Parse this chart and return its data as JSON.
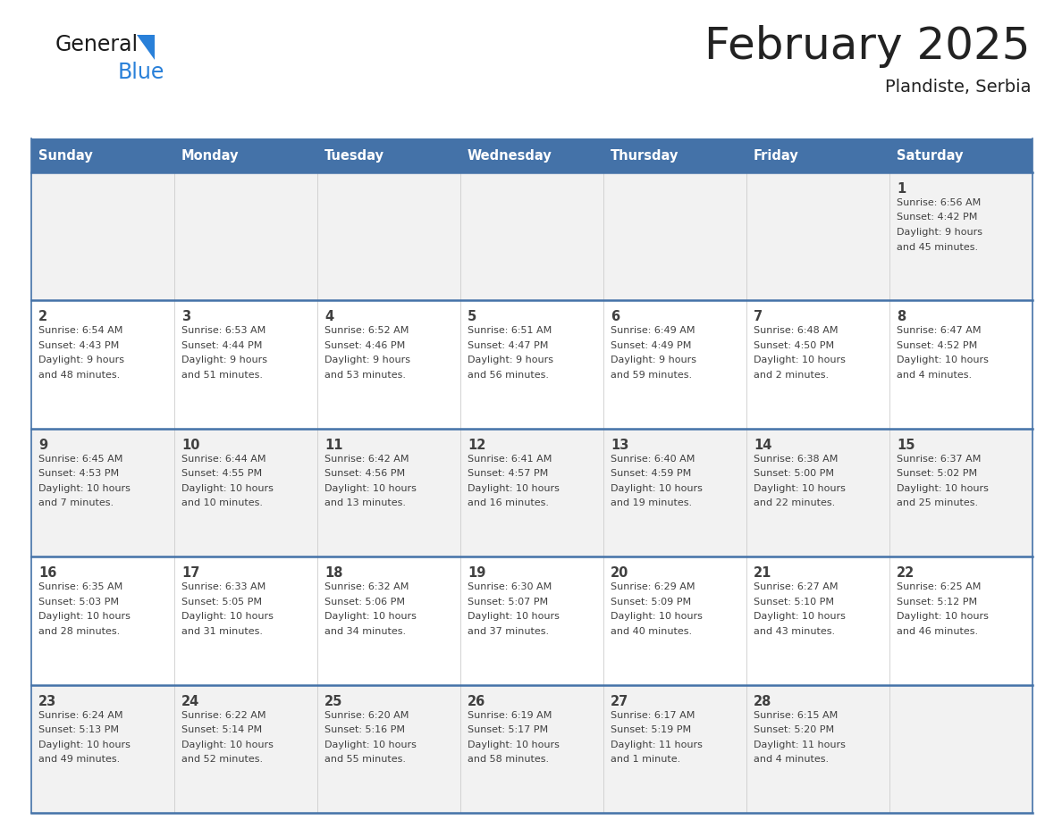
{
  "title": "February 2025",
  "subtitle": "Plandiste, Serbia",
  "days_of_week": [
    "Sunday",
    "Monday",
    "Tuesday",
    "Wednesday",
    "Thursday",
    "Friday",
    "Saturday"
  ],
  "header_bg": "#4472A8",
  "header_text_color": "#FFFFFF",
  "row_bg_colors": [
    "#F2F2F2",
    "#FFFFFF"
  ],
  "border_color": "#4472A8",
  "cell_border_color": "#BBBBBB",
  "text_color": "#404040",
  "title_color": "#222222",
  "calendar_data": [
    [
      null,
      null,
      null,
      null,
      null,
      null,
      {
        "day": 1,
        "sunrise": "6:56 AM",
        "sunset": "4:42 PM",
        "daylight": "9 hours",
        "daylight2": "and 45 minutes."
      }
    ],
    [
      {
        "day": 2,
        "sunrise": "6:54 AM",
        "sunset": "4:43 PM",
        "daylight": "9 hours",
        "daylight2": "and 48 minutes."
      },
      {
        "day": 3,
        "sunrise": "6:53 AM",
        "sunset": "4:44 PM",
        "daylight": "9 hours",
        "daylight2": "and 51 minutes."
      },
      {
        "day": 4,
        "sunrise": "6:52 AM",
        "sunset": "4:46 PM",
        "daylight": "9 hours",
        "daylight2": "and 53 minutes."
      },
      {
        "day": 5,
        "sunrise": "6:51 AM",
        "sunset": "4:47 PM",
        "daylight": "9 hours",
        "daylight2": "and 56 minutes."
      },
      {
        "day": 6,
        "sunrise": "6:49 AM",
        "sunset": "4:49 PM",
        "daylight": "9 hours",
        "daylight2": "and 59 minutes."
      },
      {
        "day": 7,
        "sunrise": "6:48 AM",
        "sunset": "4:50 PM",
        "daylight": "10 hours",
        "daylight2": "and 2 minutes."
      },
      {
        "day": 8,
        "sunrise": "6:47 AM",
        "sunset": "4:52 PM",
        "daylight": "10 hours",
        "daylight2": "and 4 minutes."
      }
    ],
    [
      {
        "day": 9,
        "sunrise": "6:45 AM",
        "sunset": "4:53 PM",
        "daylight": "10 hours",
        "daylight2": "and 7 minutes."
      },
      {
        "day": 10,
        "sunrise": "6:44 AM",
        "sunset": "4:55 PM",
        "daylight": "10 hours",
        "daylight2": "and 10 minutes."
      },
      {
        "day": 11,
        "sunrise": "6:42 AM",
        "sunset": "4:56 PM",
        "daylight": "10 hours",
        "daylight2": "and 13 minutes."
      },
      {
        "day": 12,
        "sunrise": "6:41 AM",
        "sunset": "4:57 PM",
        "daylight": "10 hours",
        "daylight2": "and 16 minutes."
      },
      {
        "day": 13,
        "sunrise": "6:40 AM",
        "sunset": "4:59 PM",
        "daylight": "10 hours",
        "daylight2": "and 19 minutes."
      },
      {
        "day": 14,
        "sunrise": "6:38 AM",
        "sunset": "5:00 PM",
        "daylight": "10 hours",
        "daylight2": "and 22 minutes."
      },
      {
        "day": 15,
        "sunrise": "6:37 AM",
        "sunset": "5:02 PM",
        "daylight": "10 hours",
        "daylight2": "and 25 minutes."
      }
    ],
    [
      {
        "day": 16,
        "sunrise": "6:35 AM",
        "sunset": "5:03 PM",
        "daylight": "10 hours",
        "daylight2": "and 28 minutes."
      },
      {
        "day": 17,
        "sunrise": "6:33 AM",
        "sunset": "5:05 PM",
        "daylight": "10 hours",
        "daylight2": "and 31 minutes."
      },
      {
        "day": 18,
        "sunrise": "6:32 AM",
        "sunset": "5:06 PM",
        "daylight": "10 hours",
        "daylight2": "and 34 minutes."
      },
      {
        "day": 19,
        "sunrise": "6:30 AM",
        "sunset": "5:07 PM",
        "daylight": "10 hours",
        "daylight2": "and 37 minutes."
      },
      {
        "day": 20,
        "sunrise": "6:29 AM",
        "sunset": "5:09 PM",
        "daylight": "10 hours",
        "daylight2": "and 40 minutes."
      },
      {
        "day": 21,
        "sunrise": "6:27 AM",
        "sunset": "5:10 PM",
        "daylight": "10 hours",
        "daylight2": "and 43 minutes."
      },
      {
        "day": 22,
        "sunrise": "6:25 AM",
        "sunset": "5:12 PM",
        "daylight": "10 hours",
        "daylight2": "and 46 minutes."
      }
    ],
    [
      {
        "day": 23,
        "sunrise": "6:24 AM",
        "sunset": "5:13 PM",
        "daylight": "10 hours",
        "daylight2": "and 49 minutes."
      },
      {
        "day": 24,
        "sunrise": "6:22 AM",
        "sunset": "5:14 PM",
        "daylight": "10 hours",
        "daylight2": "and 52 minutes."
      },
      {
        "day": 25,
        "sunrise": "6:20 AM",
        "sunset": "5:16 PM",
        "daylight": "10 hours",
        "daylight2": "and 55 minutes."
      },
      {
        "day": 26,
        "sunrise": "6:19 AM",
        "sunset": "5:17 PM",
        "daylight": "10 hours",
        "daylight2": "and 58 minutes."
      },
      {
        "day": 27,
        "sunrise": "6:17 AM",
        "sunset": "5:19 PM",
        "daylight": "11 hours",
        "daylight2": "and 1 minute."
      },
      {
        "day": 28,
        "sunrise": "6:15 AM",
        "sunset": "5:20 PM",
        "daylight": "11 hours",
        "daylight2": "and 4 minutes."
      },
      null
    ]
  ],
  "logo_text_general": "General",
  "logo_text_blue": "Blue",
  "logo_color_general": "#1a1a1a",
  "logo_color_blue": "#2980D9",
  "logo_triangle_color": "#2980D9"
}
